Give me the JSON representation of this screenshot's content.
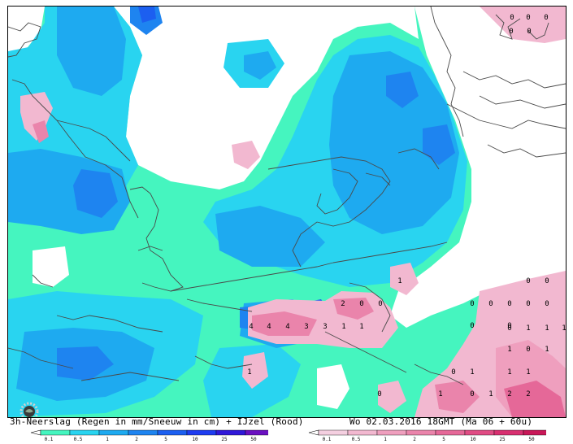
{
  "caption": {
    "left": "3h-Neerslag (Regen in mm/Sneeuw in cm) + IJzel (Rood)",
    "right": "Wo 02.03.2016 18GMT (Ma 06 + 60u)"
  },
  "colors": {
    "rain": [
      "#45f5bf",
      "#29d4f0",
      "#1eaaf0",
      "#1e84f0",
      "#1c5ff0",
      "#1e3cf0",
      "#3018d8",
      "#6a10c0"
    ],
    "ice": [
      "#f4cfe0",
      "#f2b8d0",
      "#ef9fbe",
      "#ea84ab",
      "#e56898",
      "#e04c84",
      "#d83070",
      "#c81858"
    ],
    "land_outline": "#4a4a4a"
  },
  "legend_rain": {
    "ticks": [
      "0.1",
      "0.5",
      "1",
      "2",
      "5",
      "10",
      "25",
      "50"
    ]
  },
  "legend_ice": {
    "ticks": [
      "0.1",
      "0.5",
      "1",
      "2",
      "5",
      "10",
      "25",
      "50"
    ]
  },
  "ice_values": [
    {
      "v": "0"
    },
    {
      "v": "0"
    },
    {
      "v": "0"
    },
    {
      "v": "0"
    },
    {
      "v": "0"
    },
    {
      "v": "0"
    },
    {
      "v": "0"
    },
    {
      "v": "0"
    },
    {
      "v": "0"
    },
    {
      "v": "0"
    },
    {
      "v": "0"
    },
    {
      "v": "0"
    },
    {
      "v": "0"
    },
    {
      "v": "0"
    },
    {
      "v": "1"
    },
    {
      "v": "2"
    },
    {
      "v": "0"
    },
    {
      "v": "0"
    },
    {
      "v": "4"
    },
    {
      "v": "4"
    },
    {
      "v": "4"
    },
    {
      "v": "3"
    },
    {
      "v": "3"
    },
    {
      "v": "1"
    },
    {
      "v": "1"
    },
    {
      "v": "0"
    },
    {
      "v": "1"
    },
    {
      "v": "1"
    },
    {
      "v": "1"
    },
    {
      "v": "1"
    },
    {
      "v": "0"
    },
    {
      "v": "1"
    },
    {
      "v": "1"
    },
    {
      "v": "0"
    },
    {
      "v": "1"
    },
    {
      "v": "1"
    },
    {
      "v": "1"
    },
    {
      "v": "0"
    },
    {
      "v": "1"
    },
    {
      "v": "2"
    },
    {
      "v": "2"
    },
    {
      "v": "1"
    },
    {
      "v": "0"
    }
  ]
}
